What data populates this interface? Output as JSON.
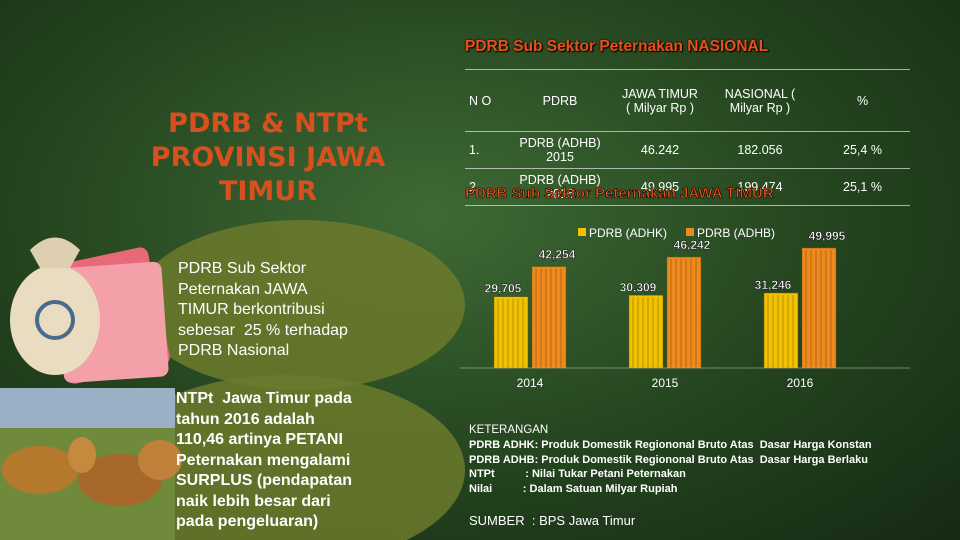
{
  "slide": {
    "title_lines": [
      "PDRB & NTPt",
      "PROVINSI JAWA TIMUR"
    ],
    "notes": [
      {
        "lines": [
          "PDRB Sub Sektor",
          "Peternakan JAWA",
          "TIMUR berkontribusi",
          "sebesar  25 % terhadap",
          "PDRB Nasional"
        ]
      },
      {
        "lines": [
          "NTPt  Jawa Timur pada",
          "tahun 2016 adalah",
          "110,46 artinya PETANI",
          "Peternakan mengalami",
          "SURPLUS (pendapatan",
          "naik lebih besar dari",
          "pada pengeluaran)"
        ]
      }
    ]
  },
  "table": {
    "title": "PDRB Sub Sektor Peternakan NASIONAL",
    "header": [
      "N O",
      "PDRB",
      "JAWA TIMUR ( Milyar Rp )",
      "NASIONAL ( Milyar Rp )",
      "%"
    ],
    "rows": [
      [
        "1.",
        "PDRB  (ADHB) 2015",
        "46.242",
        "182.056",
        "25,4 %"
      ],
      [
        "2.",
        "PDRB  (ADHB) 2016",
        "49.995",
        "199.474",
        "25,1 %"
      ]
    ]
  },
  "chart_data": {
    "type": "bar",
    "title": "PDRB Sub Sektor Peternakan JAWA TIMUR",
    "categories": [
      "2014",
      "2015",
      "2016"
    ],
    "series": [
      {
        "name": "PDRB (ADHK)",
        "color": "#f2c200",
        "values": [
          29705,
          30309,
          31246
        ],
        "value_labels": [
          "29,705",
          "30,309",
          "31,246"
        ]
      },
      {
        "name": "PDRB (ADHB)",
        "color": "#ef8a1e",
        "values": [
          42254,
          46242,
          49995
        ],
        "value_labels": [
          "42,254",
          "46,242",
          "49,995"
        ]
      }
    ]
  },
  "notes_box": {
    "heading": "KETERANGAN",
    "lines": [
      "PDRB ADHK: Produk Domestik Regiononal Bruto Atas  Dasar Harga Konstan",
      "PDRB ADHB: Produk Domestik Regiononal Bruto Atas  Dasar Harga Berlaku",
      "NTPt          : Nilai Tukar Petani Peternakan",
      "Nilai          : Dalam Satuan Milyar Rupiah"
    ],
    "source": "SUMBER  : BPS Jawa Timur"
  }
}
